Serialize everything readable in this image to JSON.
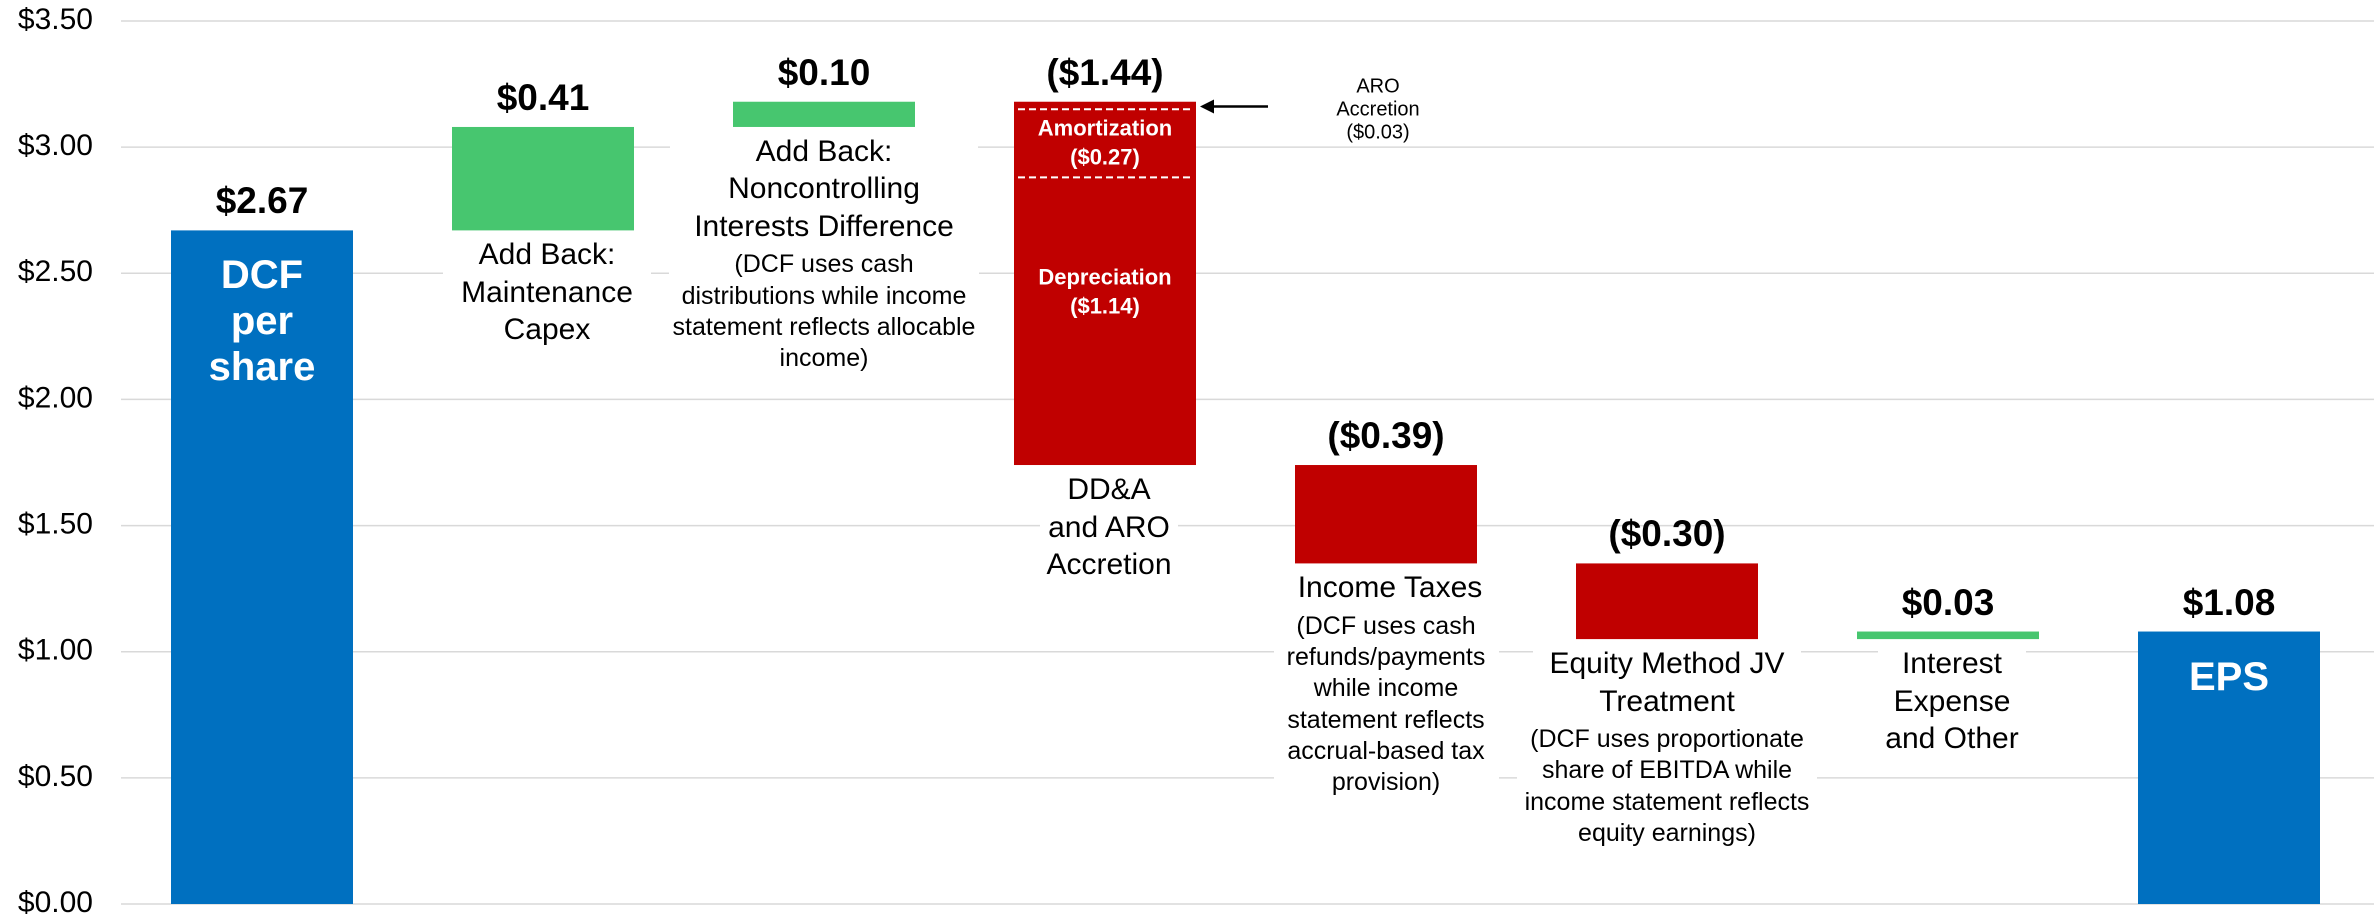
{
  "chart_data": {
    "type": "waterfall",
    "categories": [
      "DCF per share",
      "Add Back: Maintenance Capex",
      "Add Back: Noncontrolling Interests Difference",
      "DD&A and ARO Accretion",
      "Income Taxes",
      "Equity Method JV Treatment",
      "Interest Expense and Other",
      "EPS"
    ],
    "notes": [
      null,
      null,
      "(DCF uses cash distributions while income statement reflects allocable income)",
      null,
      "(DCF uses cash refunds/payments while income statement reflects accrual-based tax provision)",
      "(DCF uses proportionate share of EBITDA while income statement reflects equity earnings)",
      null,
      null
    ],
    "values": [
      2.67,
      0.41,
      0.1,
      -1.44,
      -0.39,
      -0.3,
      0.03,
      1.08
    ],
    "value_labels": [
      "$2.67",
      "$0.41",
      "$0.10",
      "($1.44)",
      "($0.39)",
      "($0.30)",
      "$0.03",
      "$1.08"
    ],
    "total": [
      true,
      false,
      false,
      false,
      false,
      false,
      false,
      true
    ],
    "segments": [
      null,
      null,
      null,
      [
        {
          "name": "ARO Accretion",
          "value": -0.03,
          "value_label": "($0.03)",
          "callout": true
        },
        {
          "name": "Amortization",
          "value": -0.27,
          "value_label": "($0.27)"
        },
        {
          "name": "Depreciation",
          "value": -1.14,
          "value_label": "($1.14)"
        }
      ],
      null,
      null,
      null,
      null
    ],
    "colors": {
      "total": "#0070c0",
      "increase": "#47c66f",
      "decrease": "#c00000"
    },
    "ylim": [
      0,
      3.5
    ],
    "yticks": [
      {
        "value": 0,
        "label": "$0.00"
      },
      {
        "value": 0.5,
        "label": "$0.50"
      },
      {
        "value": 1,
        "label": "$1.00"
      },
      {
        "value": 1.5,
        "label": "$1.50"
      },
      {
        "value": 2,
        "label": "$2.00"
      },
      {
        "value": 2.5,
        "label": "$2.50"
      },
      {
        "value": 3,
        "label": "$3.00"
      },
      {
        "value": 3.5,
        "label": "$3.50"
      }
    ],
    "grid": true
  }
}
